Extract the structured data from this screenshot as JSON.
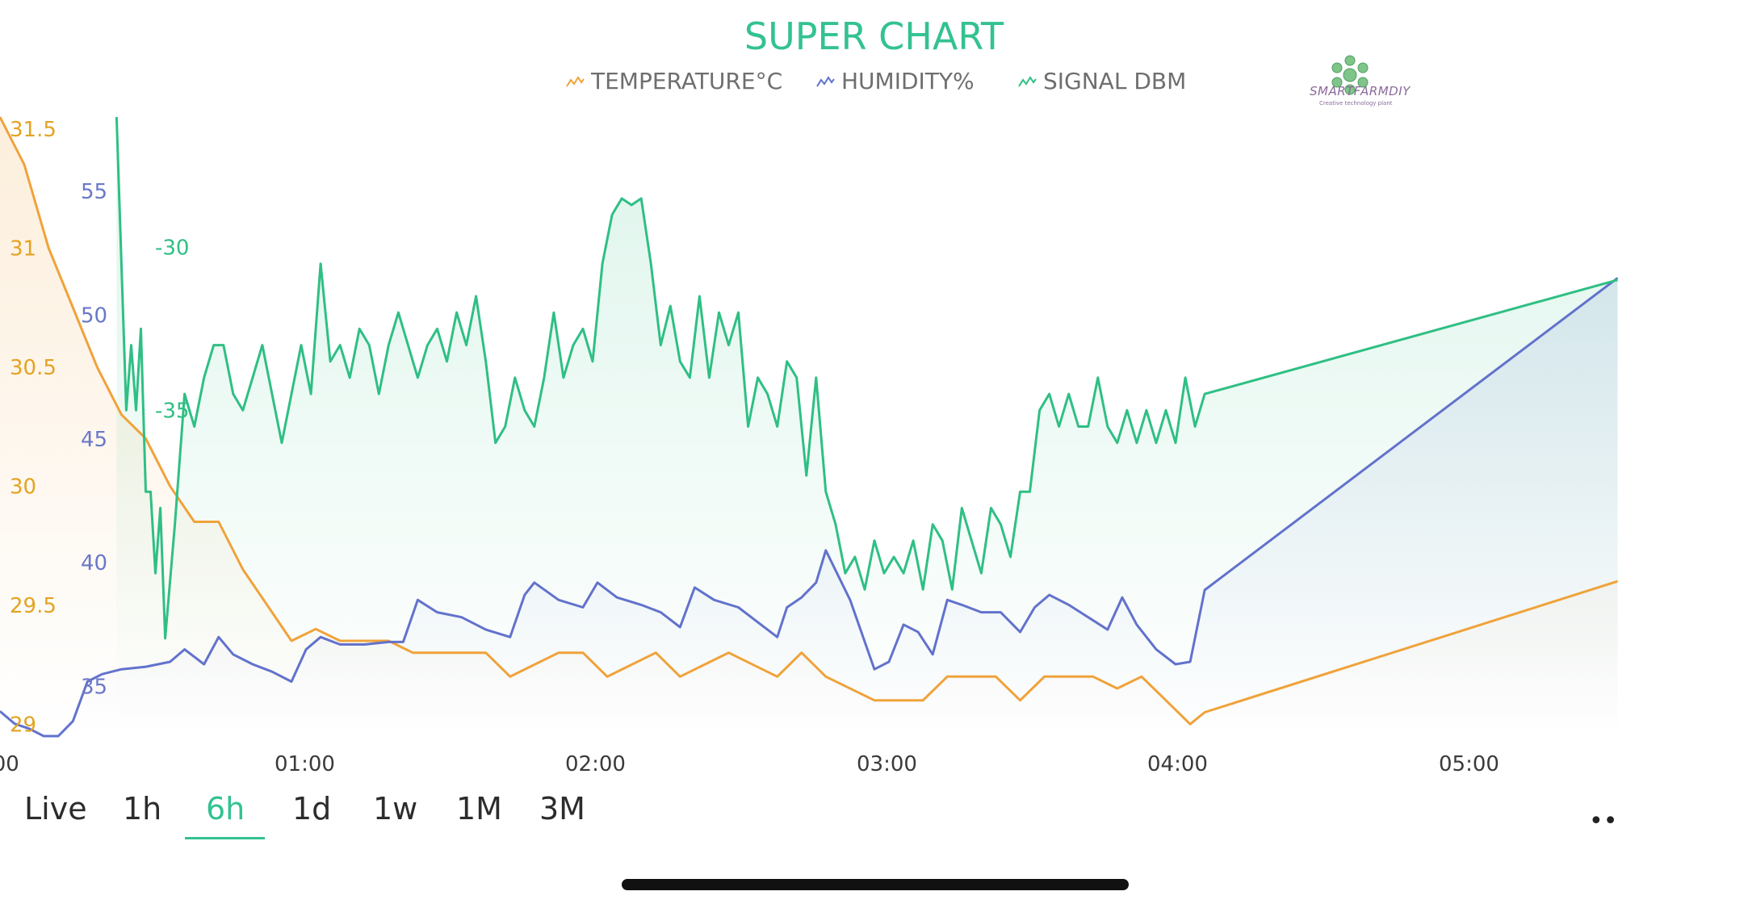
{
  "title": "SUPER CHART",
  "legend": [
    {
      "label": "TEMPERATURE°C",
      "color": "#f0a23a",
      "icon": "line-chart-icon"
    },
    {
      "label": "HUMIDITY%",
      "color": "#6272cc",
      "icon": "line-chart-icon"
    },
    {
      "label": "SIGNAL DBM",
      "color": "#2fbf84",
      "icon": "line-chart-icon"
    }
  ],
  "logo": {
    "name": "SMARTFARMDIY",
    "tagline": "Creative technology plant"
  },
  "ranges": {
    "tabs": [
      "Live",
      "1h",
      "6h",
      "1d",
      "1w",
      "1M",
      "3M"
    ],
    "active": "6h",
    "more": "••"
  },
  "chart_data": {
    "type": "line",
    "title": "SUPER CHART",
    "x_ticks": [
      ":00",
      "01:00",
      "02:00",
      "03:00",
      "04:00",
      "05:00"
    ],
    "xlim": [
      "00:00",
      "05:33"
    ],
    "grid": false,
    "legend_position": "top",
    "axes": [
      {
        "series": "TEMPERATURE°C",
        "ticks": [
          "29",
          "29.5",
          "30",
          "30.5",
          "31",
          "31.5"
        ],
        "ylim": [
          28.95,
          31.55
        ],
        "color": "#e3a322"
      },
      {
        "series": "HUMIDITY%",
        "ticks": [
          "35",
          "40",
          "45",
          "50",
          "55"
        ],
        "ylim": [
          33,
          58
        ],
        "color": "#6a78c8"
      },
      {
        "series": "SIGNAL DBM",
        "ticks": [
          "-30",
          "-35"
        ],
        "ylim": [
          -45,
          -26
        ],
        "color": "#2fbf84"
      }
    ],
    "series": [
      {
        "name": "TEMPERATURE°C",
        "color": "#f0a23a",
        "points": [
          [
            "00:00",
            31.55
          ],
          [
            "00:05",
            31.35
          ],
          [
            "00:10",
            31.0
          ],
          [
            "00:15",
            30.75
          ],
          [
            "00:20",
            30.5
          ],
          [
            "00:25",
            30.3
          ],
          [
            "00:30",
            30.2
          ],
          [
            "00:35",
            30.0
          ],
          [
            "00:40",
            29.85
          ],
          [
            "00:45",
            29.85
          ],
          [
            "00:50",
            29.65
          ],
          [
            "00:55",
            29.5
          ],
          [
            "01:00",
            29.35
          ],
          [
            "01:05",
            29.4
          ],
          [
            "01:10",
            29.35
          ],
          [
            "01:15",
            29.35
          ],
          [
            "01:20",
            29.35
          ],
          [
            "01:25",
            29.3
          ],
          [
            "01:40",
            29.3
          ],
          [
            "01:45",
            29.2
          ],
          [
            "01:55",
            29.3
          ],
          [
            "02:00",
            29.3
          ],
          [
            "02:05",
            29.2
          ],
          [
            "02:15",
            29.3
          ],
          [
            "02:20",
            29.2
          ],
          [
            "02:30",
            29.3
          ],
          [
            "02:40",
            29.2
          ],
          [
            "02:45",
            29.3
          ],
          [
            "02:50",
            29.2
          ],
          [
            "03:00",
            29.1
          ],
          [
            "03:10",
            29.1
          ],
          [
            "03:15",
            29.2
          ],
          [
            "03:25",
            29.2
          ],
          [
            "03:30",
            29.1
          ],
          [
            "03:35",
            29.2
          ],
          [
            "03:45",
            29.2
          ],
          [
            "03:50",
            29.15
          ],
          [
            "03:55",
            29.2
          ],
          [
            "04:00",
            29.1
          ],
          [
            "04:05",
            29.0
          ],
          [
            "04:08",
            29.05
          ],
          [
            "05:33",
            29.6
          ]
        ]
      },
      {
        "name": "HUMIDITY%",
        "color": "#6272cc",
        "points": [
          [
            "00:00",
            34.0
          ],
          [
            "00:03",
            33.5
          ],
          [
            "00:06",
            33.3
          ],
          [
            "00:09",
            33.0
          ],
          [
            "00:12",
            33.0
          ],
          [
            "00:15",
            33.6
          ],
          [
            "00:18",
            35.2
          ],
          [
            "00:21",
            35.5
          ],
          [
            "00:25",
            35.7
          ],
          [
            "00:30",
            35.8
          ],
          [
            "00:35",
            36.0
          ],
          [
            "00:38",
            36.5
          ],
          [
            "00:42",
            35.9
          ],
          [
            "00:45",
            37.0
          ],
          [
            "00:48",
            36.3
          ],
          [
            "00:52",
            35.9
          ],
          [
            "00:56",
            35.6
          ],
          [
            "01:00",
            35.2
          ],
          [
            "01:03",
            36.5
          ],
          [
            "01:06",
            37.0
          ],
          [
            "01:10",
            36.7
          ],
          [
            "01:15",
            36.7
          ],
          [
            "01:20",
            36.8
          ],
          [
            "01:23",
            36.8
          ],
          [
            "01:26",
            38.5
          ],
          [
            "01:30",
            38.0
          ],
          [
            "01:35",
            37.8
          ],
          [
            "01:40",
            37.3
          ],
          [
            "01:45",
            37.0
          ],
          [
            "01:48",
            38.7
          ],
          [
            "01:50",
            39.2
          ],
          [
            "01:55",
            38.5
          ],
          [
            "02:00",
            38.2
          ],
          [
            "02:03",
            39.2
          ],
          [
            "02:07",
            38.6
          ],
          [
            "02:12",
            38.3
          ],
          [
            "02:16",
            38.0
          ],
          [
            "02:20",
            37.4
          ],
          [
            "02:23",
            39.0
          ],
          [
            "02:27",
            38.5
          ],
          [
            "02:32",
            38.2
          ],
          [
            "02:36",
            37.6
          ],
          [
            "02:40",
            37.0
          ],
          [
            "02:42",
            38.2
          ],
          [
            "02:45",
            38.6
          ],
          [
            "02:48",
            39.2
          ],
          [
            "02:50",
            40.5
          ],
          [
            "02:55",
            38.5
          ],
          [
            "03:00",
            35.7
          ],
          [
            "03:03",
            36.0
          ],
          [
            "03:06",
            37.5
          ],
          [
            "03:09",
            37.2
          ],
          [
            "03:12",
            36.3
          ],
          [
            "03:15",
            38.5
          ],
          [
            "03:18",
            38.3
          ],
          [
            "03:22",
            38.0
          ],
          [
            "03:26",
            38.0
          ],
          [
            "03:30",
            37.2
          ],
          [
            "03:33",
            38.2
          ],
          [
            "03:36",
            38.7
          ],
          [
            "03:40",
            38.3
          ],
          [
            "03:44",
            37.8
          ],
          [
            "03:48",
            37.3
          ],
          [
            "03:51",
            38.6
          ],
          [
            "03:54",
            37.5
          ],
          [
            "03:58",
            36.5
          ],
          [
            "04:02",
            35.9
          ],
          [
            "04:05",
            36.0
          ],
          [
            "04:08",
            38.9
          ],
          [
            "05:33",
            51.5
          ]
        ]
      },
      {
        "name": "SIGNAL DBM",
        "color": "#2fbf84",
        "points": [
          [
            "00:24",
            -26.0
          ],
          [
            "00:25",
            -30.5
          ],
          [
            "00:26",
            -35.0
          ],
          [
            "00:27",
            -33.0
          ],
          [
            "00:28",
            -35.0
          ],
          [
            "00:29",
            -32.5
          ],
          [
            "00:30",
            -37.5
          ],
          [
            "00:31",
            -37.5
          ],
          [
            "00:32",
            -40.0
          ],
          [
            "00:33",
            -38.0
          ],
          [
            "00:34",
            -42.0
          ],
          [
            "00:36",
            -38.5
          ],
          [
            "00:38",
            -34.5
          ],
          [
            "00:40",
            -35.5
          ],
          [
            "00:42",
            -34.0
          ],
          [
            "00:44",
            -33.0
          ],
          [
            "00:46",
            -33.0
          ],
          [
            "00:48",
            -34.5
          ],
          [
            "00:50",
            -35.0
          ],
          [
            "00:52",
            -34.0
          ],
          [
            "00:54",
            -33.0
          ],
          [
            "00:56",
            -34.5
          ],
          [
            "00:58",
            -36.0
          ],
          [
            "01:00",
            -34.5
          ],
          [
            "01:02",
            -33.0
          ],
          [
            "01:04",
            -34.5
          ],
          [
            "01:06",
            -30.5
          ],
          [
            "01:08",
            -33.5
          ],
          [
            "01:10",
            -33.0
          ],
          [
            "01:12",
            -34.0
          ],
          [
            "01:14",
            -32.5
          ],
          [
            "01:16",
            -33.0
          ],
          [
            "01:18",
            -34.5
          ],
          [
            "01:20",
            -33.0
          ],
          [
            "01:22",
            -32.0
          ],
          [
            "01:24",
            -33.0
          ],
          [
            "01:26",
            -34.0
          ],
          [
            "01:28",
            -33.0
          ],
          [
            "01:30",
            -32.5
          ],
          [
            "01:32",
            -33.5
          ],
          [
            "01:34",
            -32.0
          ],
          [
            "01:36",
            -33.0
          ],
          [
            "01:38",
            -31.5
          ],
          [
            "01:40",
            -33.5
          ],
          [
            "01:42",
            -36.0
          ],
          [
            "01:44",
            -35.5
          ],
          [
            "01:46",
            -34.0
          ],
          [
            "01:48",
            -35.0
          ],
          [
            "01:50",
            -35.5
          ],
          [
            "01:52",
            -34.0
          ],
          [
            "01:54",
            -32.0
          ],
          [
            "01:56",
            -34.0
          ],
          [
            "01:58",
            -33.0
          ],
          [
            "02:00",
            -32.5
          ],
          [
            "02:02",
            -33.5
          ],
          [
            "02:04",
            -30.5
          ],
          [
            "02:06",
            -29.0
          ],
          [
            "02:08",
            -28.5
          ],
          [
            "02:10",
            -28.7
          ],
          [
            "02:12",
            -28.5
          ],
          [
            "02:14",
            -30.5
          ],
          [
            "02:16",
            -33.0
          ],
          [
            "02:18",
            -31.8
          ],
          [
            "02:20",
            -33.5
          ],
          [
            "02:22",
            -34.0
          ],
          [
            "02:24",
            -31.5
          ],
          [
            "02:26",
            -34.0
          ],
          [
            "02:28",
            -32.0
          ],
          [
            "02:30",
            -33.0
          ],
          [
            "02:32",
            -32.0
          ],
          [
            "02:34",
            -35.5
          ],
          [
            "02:36",
            -34.0
          ],
          [
            "02:38",
            -34.5
          ],
          [
            "02:40",
            -35.5
          ],
          [
            "02:42",
            -33.5
          ],
          [
            "02:44",
            -34.0
          ],
          [
            "02:46",
            -37.0
          ],
          [
            "02:48",
            -34.0
          ],
          [
            "02:50",
            -37.5
          ],
          [
            "02:52",
            -38.5
          ],
          [
            "02:54",
            -40.0
          ],
          [
            "02:56",
            -39.5
          ],
          [
            "02:58",
            -40.5
          ],
          [
            "03:00",
            -39.0
          ],
          [
            "03:02",
            -40.0
          ],
          [
            "03:04",
            -39.5
          ],
          [
            "03:06",
            -40.0
          ],
          [
            "03:08",
            -39.0
          ],
          [
            "03:10",
            -40.5
          ],
          [
            "03:12",
            -38.5
          ],
          [
            "03:14",
            -39.0
          ],
          [
            "03:16",
            -40.5
          ],
          [
            "03:18",
            -38.0
          ],
          [
            "03:20",
            -39.0
          ],
          [
            "03:22",
            -40.0
          ],
          [
            "03:24",
            -38.0
          ],
          [
            "03:26",
            -38.5
          ],
          [
            "03:28",
            -39.5
          ],
          [
            "03:30",
            -37.5
          ],
          [
            "03:32",
            -37.5
          ],
          [
            "03:34",
            -35.0
          ],
          [
            "03:36",
            -34.5
          ],
          [
            "03:38",
            -35.5
          ],
          [
            "03:40",
            -34.5
          ],
          [
            "03:42",
            -35.5
          ],
          [
            "03:44",
            -35.5
          ],
          [
            "03:46",
            -34.0
          ],
          [
            "03:48",
            -35.5
          ],
          [
            "03:50",
            -36.0
          ],
          [
            "03:52",
            -35.0
          ],
          [
            "03:54",
            -36.0
          ],
          [
            "03:56",
            -35.0
          ],
          [
            "03:58",
            -36.0
          ],
          [
            "04:00",
            -35.0
          ],
          [
            "04:02",
            -36.0
          ],
          [
            "04:04",
            -34.0
          ],
          [
            "04:06",
            -35.5
          ],
          [
            "04:08",
            -34.5
          ],
          [
            "05:33",
            -31.0
          ]
        ]
      }
    ]
  }
}
